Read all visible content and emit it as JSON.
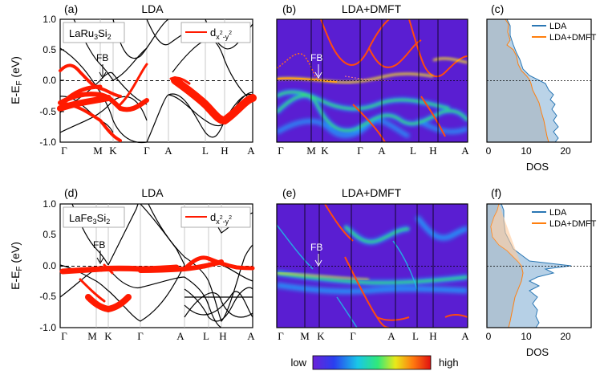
{
  "figure": {
    "panels": [
      {
        "id": "a",
        "tag": "(a)",
        "title": "LDA",
        "kind": "bands",
        "material_main": "LaRu",
        "material_sub1": "3",
        "material_mid": "Si",
        "material_sub2": "2",
        "legend_main": "d",
        "legend_sub": "x",
        "legend_sup1": "2",
        "legend_sub2": "-y",
        "legend_sup2": "2",
        "fb_label": "FB",
        "fb_k": 2.0,
        "fb_e": 0.03
      },
      {
        "id": "b",
        "tag": "(b)",
        "title": "LDA+DMFT",
        "kind": "spectral",
        "fb_label": "FB",
        "fb_k": 2.0,
        "fb_e": -0.02
      },
      {
        "id": "c",
        "tag": "(c)",
        "title": "",
        "kind": "dos"
      },
      {
        "id": "d",
        "tag": "(d)",
        "title": "LDA",
        "kind": "bands",
        "material_main": "LaFe",
        "material_sub1": "3",
        "material_mid": "Si",
        "material_sub2": "2",
        "legend_main": "d",
        "legend_sub": "x",
        "legend_sup1": "2",
        "legend_sub2": "-y",
        "legend_sup2": "2",
        "fb_label": "FB",
        "fb_k": 2.0,
        "fb_e": 0.02
      },
      {
        "id": "e",
        "tag": "(e)",
        "title": "LDA+DMFT",
        "kind": "spectral",
        "fb_label": "FB",
        "fb_k": 2.0,
        "fb_e": -0.02
      },
      {
        "id": "f",
        "tag": "(f)",
        "title": "",
        "kind": "dos"
      }
    ],
    "ylabel_main": "E-E",
    "ylabel_sub": "F",
    "ylabel_unit": " (eV)",
    "dos_xlabel": "DOS",
    "colorbar_low": "low",
    "colorbar_high": "high",
    "colors": {
      "lda_orbital": "#ff1a00",
      "lda_dos": "#2a77b4",
      "dmft_dos": "#ff7f0e",
      "dmft_fill": "#c7a27f",
      "background_spectral": "#5a1ed2"
    }
  },
  "chart_data": [
    {
      "type": "line",
      "panel": "a",
      "title": "LDA",
      "ylabel": "E-EF (eV)",
      "ylim": [
        -1.0,
        1.0
      ],
      "yticks": [
        -1.0,
        -0.5,
        0.0,
        0.5,
        1.0
      ],
      "ytick_labels": [
        "-1.0",
        "-0.5",
        "0.0",
        "0.5",
        "1.0"
      ],
      "xticks": [
        0,
        1.5,
        2.0,
        3.3,
        4.0,
        5.2,
        5.9,
        7.0
      ],
      "xtick_labels": [
        "Γ",
        "M",
        "K",
        "Γ",
        "A",
        "L",
        "H",
        "A"
      ],
      "series": [
        {
          "name": "d_x2-y2",
          "x": [
            0,
            0.6,
            1.2,
            1.6,
            2.0,
            2.5,
            3.0
          ],
          "y": [
            0.35,
            0.3,
            0.2,
            0.1,
            0.02,
            -0.1,
            -0.2
          ]
        },
        {
          "name": "d_x2-y2",
          "x": [
            0,
            0.5,
            1.0,
            1.6,
            2.2,
            2.8
          ],
          "y": [
            -0.3,
            -0.25,
            -0.2,
            -0.1,
            -0.05,
            0.0
          ]
        },
        {
          "name": "d_x2-y2",
          "x": [
            4.0,
            4.4,
            4.8,
            5.2,
            5.6,
            5.9,
            6.4,
            7.0
          ],
          "y": [
            0.0,
            -0.05,
            -0.15,
            -0.25,
            -0.4,
            -0.6,
            -0.45,
            -0.3
          ]
        }
      ]
    },
    {
      "type": "heatmap",
      "panel": "b",
      "title": "LDA+DMFT",
      "ylim": [
        -1.0,
        1.0
      ],
      "xtick_labels": [
        "Γ",
        "M",
        "K",
        "Γ",
        "A",
        "L",
        "H",
        "A"
      ],
      "colorbar": [
        "low",
        "high"
      ]
    },
    {
      "type": "area",
      "panel": "c",
      "xlabel": "DOS",
      "xlim": [
        0,
        25
      ],
      "xticks": [
        0,
        10,
        20
      ],
      "ylim": [
        -1.0,
        1.0
      ],
      "series": [
        {
          "name": "LDA",
          "y": [
            1.0,
            0.8,
            0.6,
            0.4,
            0.2,
            0.0,
            -0.2,
            -0.4,
            -0.6,
            -0.8,
            -1.0
          ],
          "x": [
            4,
            5,
            5,
            6,
            8,
            12,
            13,
            14,
            16,
            15,
            16
          ]
        },
        {
          "name": "LDA+DMFT",
          "y": [
            1.0,
            0.8,
            0.6,
            0.4,
            0.2,
            0.0,
            -0.2,
            -0.4,
            -0.6,
            -0.8,
            -1.0
          ],
          "x": [
            4,
            4,
            5,
            6,
            8,
            11,
            12,
            13,
            14,
            14,
            15
          ]
        }
      ]
    },
    {
      "type": "line",
      "panel": "d",
      "title": "LDA",
      "ylabel": "E-EF (eV)",
      "ylim": [
        -1.0,
        1.0
      ],
      "yticks": [
        -1.0,
        -0.5,
        0.0,
        0.5,
        1.0
      ],
      "ytick_labels": [
        "-1.0",
        "-0.5",
        "0.0",
        "0.5",
        "1.0"
      ],
      "xticks": [
        0,
        1.5,
        2.0,
        3.3,
        4.8,
        5.6,
        6.1,
        7.0
      ],
      "xtick_labels": [
        "Γ",
        "M",
        "K",
        "Γ",
        "A",
        "L",
        "H",
        "A"
      ],
      "series": [
        {
          "name": "d_x2-y2",
          "x": [
            0,
            0.6,
            1.2,
            1.6,
            2.0,
            2.6,
            3.3,
            4.0,
            4.8
          ],
          "y": [
            -0.08,
            -0.07,
            -0.05,
            -0.03,
            0.0,
            -0.04,
            -0.06,
            -0.04,
            0.0
          ]
        },
        {
          "name": "d_x2-y2",
          "x": [
            1.0,
            1.5,
            2.0,
            2.5
          ],
          "y": [
            -0.45,
            -0.65,
            -0.7,
            -0.5
          ]
        },
        {
          "name": "d_x2-y2",
          "x": [
            4.8,
            5.3,
            5.8,
            6.2,
            6.6,
            7.0
          ],
          "y": [
            0.05,
            0.1,
            0.12,
            0.08,
            0.02,
            -0.02
          ]
        }
      ]
    },
    {
      "type": "heatmap",
      "panel": "e",
      "title": "LDA+DMFT",
      "ylim": [
        -1.0,
        1.0
      ],
      "xtick_labels": [
        "Γ",
        "M",
        "K",
        "Γ",
        "A",
        "L",
        "H",
        "A"
      ],
      "colorbar": [
        "low",
        "high"
      ]
    },
    {
      "type": "area",
      "panel": "f",
      "xlabel": "DOS",
      "xlim": [
        0,
        25
      ],
      "xticks": [
        0,
        10,
        20
      ],
      "ylim": [
        -1.0,
        1.0
      ],
      "series": [
        {
          "name": "LDA",
          "y": [
            1.0,
            0.6,
            0.2,
            0.05,
            0.0,
            -0.05,
            -0.2,
            -0.4,
            -0.6,
            -0.8,
            -1.0
          ],
          "x": [
            3,
            2,
            3,
            6,
            22,
            16,
            14,
            12,
            10,
            9,
            9
          ]
        },
        {
          "name": "LDA+DMFT",
          "y": [
            1.0,
            0.6,
            0.2,
            0.05,
            0.0,
            -0.05,
            -0.2,
            -0.4,
            -0.6,
            -0.8,
            -1.0
          ],
          "x": [
            5,
            6,
            7,
            9,
            10,
            8,
            7,
            6,
            5,
            5,
            5
          ]
        }
      ]
    }
  ]
}
